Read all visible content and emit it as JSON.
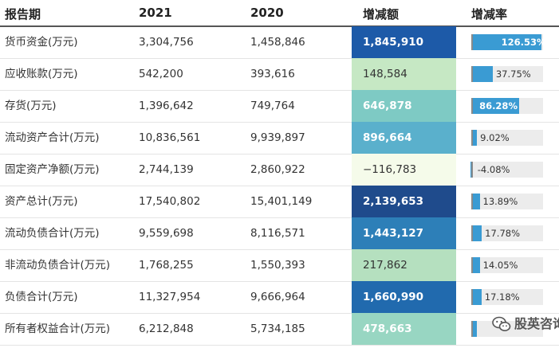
{
  "headers": {
    "period": "报告期",
    "y2021": "2021",
    "y2020": "2020",
    "diff": "增减额",
    "rate": "增减率"
  },
  "rows": [
    {
      "label": "货币资金(万元)",
      "v2021": "3,304,756",
      "v2020": "1,458,846",
      "diff": "1,845,910",
      "rate_label": "126.53%",
      "rate_pct": 126.53,
      "diff_color": "#1d5aa8"
    },
    {
      "label": "应收账款(万元)",
      "v2021": "542,200",
      "v2020": "393,616",
      "diff": "148,584",
      "rate_label": "37.75%",
      "rate_pct": 37.75,
      "diff_color": "#c6e8c4"
    },
    {
      "label": "存货(万元)",
      "v2021": "1,396,642",
      "v2020": "749,764",
      "diff": "646,878",
      "rate_label": "86.28%",
      "rate_pct": 86.28,
      "diff_color": "#7ecac4"
    },
    {
      "label": "流动资产合计(万元)",
      "v2021": "10,836,561",
      "v2020": "9,939,897",
      "diff": "896,664",
      "rate_label": "9.02%",
      "rate_pct": 9.02,
      "diff_color": "#5ab0cc"
    },
    {
      "label": "固定资产净额(万元)",
      "v2021": "2,744,139",
      "v2020": "2,860,922",
      "diff": "−116,783",
      "rate_label": "-4.08%",
      "rate_pct": -4.08,
      "diff_color": "#f5fbea"
    },
    {
      "label": "资产总计(万元)",
      "v2021": "17,540,802",
      "v2020": "15,401,149",
      "diff": "2,139,653",
      "rate_label": "13.89%",
      "rate_pct": 13.89,
      "diff_color": "#1f4b8c"
    },
    {
      "label": "流动负债合计(万元)",
      "v2021": "9,559,698",
      "v2020": "8,116,571",
      "diff": "1,443,127",
      "rate_label": "17.78%",
      "rate_pct": 17.78,
      "diff_color": "#2d7fb8"
    },
    {
      "label": "非流动负债合计(万元)",
      "v2021": "1,768,255",
      "v2020": "1,550,393",
      "diff": "217,862",
      "rate_label": "14.05%",
      "rate_pct": 14.05,
      "diff_color": "#b5e0bf"
    },
    {
      "label": "负债合计(万元)",
      "v2021": "11,327,954",
      "v2020": "9,666,964",
      "diff": "1,660,990",
      "rate_label": "17.18%",
      "rate_pct": 17.18,
      "diff_color": "#216aae"
    },
    {
      "label": "所有者权益合计(万元)",
      "v2021": "6,212,848",
      "v2020": "5,734,185",
      "diff": "478,663",
      "rate_label": "",
      "rate_pct": 8.35,
      "diff_color": "#98d6c2"
    }
  ],
  "colors": {
    "rate_bar": "#3a9bd3",
    "rate_track": "#ececec"
  },
  "watermark": {
    "text": "股英咨询",
    "icon": "wechat-icon"
  }
}
